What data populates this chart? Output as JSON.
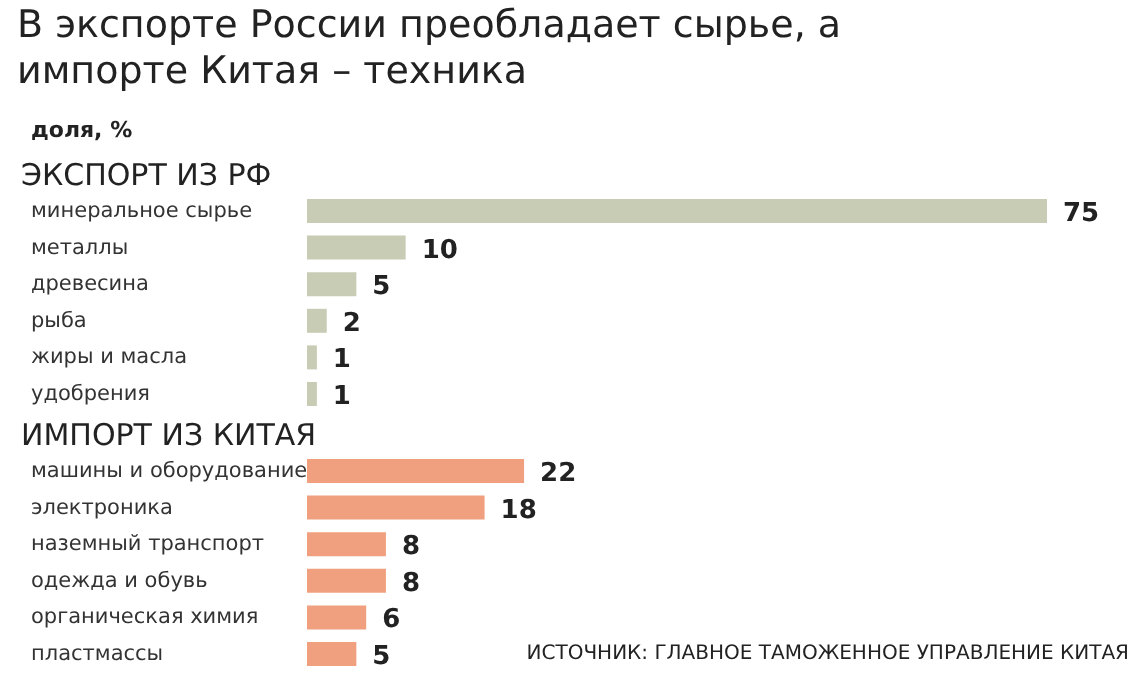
{
  "chart_data": [
    {
      "type": "bar",
      "orientation": "horizontal",
      "title": "В экспорте России преобладает сырье, а импорте Китая – техника",
      "subtitle": "доля, %",
      "xlabel": "ЭКСПОРТ ИЗ РФ",
      "categories": [
        "минеральное сырье",
        "металлы",
        "древесина",
        "рыба",
        "жиры и масла",
        "удобрения"
      ],
      "values": [
        75,
        10,
        5,
        2,
        1,
        1
      ],
      "color": "#c9ccb5",
      "data_labels": true
    },
    {
      "type": "bar",
      "orientation": "horizontal",
      "xlabel": "ИМПОРТ ИЗ КИТАЯ",
      "categories": [
        "машины и оборудование",
        "электроника",
        "наземный транспорт",
        "одежда и обувь",
        "органическая химия",
        "пластмассы"
      ],
      "values": [
        22,
        18,
        8,
        8,
        6,
        5
      ],
      "color": "#f0a07e",
      "data_labels": true,
      "annotations": [
        "ИСТОЧНИК: ГЛАВНОЕ ТАМОЖЕННОЕ УПРАВЛЕНИЕ КИТАЯ"
      ]
    }
  ]
}
